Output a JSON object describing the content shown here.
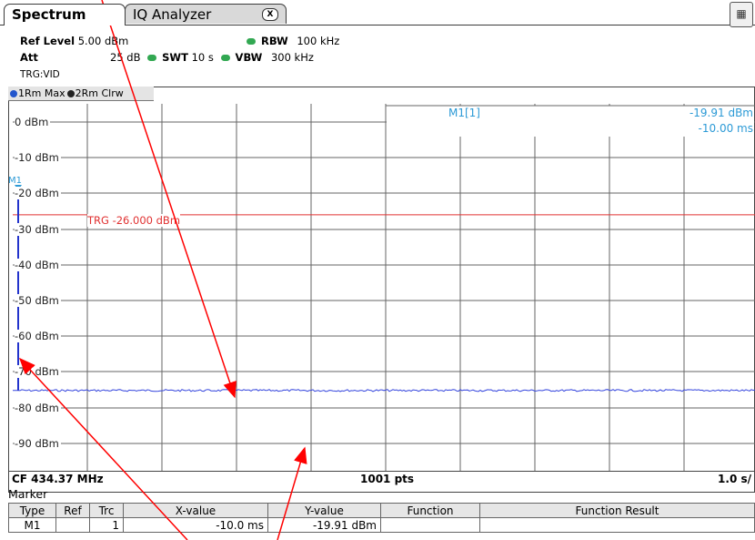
{
  "tabs": [
    {
      "label": "Spectrum",
      "active": true
    },
    {
      "label": "IQ Analyzer",
      "active": false,
      "close_glyph": "X"
    }
  ],
  "settings": {
    "ref_level_label": "Ref Level",
    "ref_level_value": "5.00 dBm",
    "att_label": "Att",
    "att_value": "25 dB",
    "swt_label": "SWT",
    "swt_value": "10 s",
    "rbw_label": "RBW",
    "rbw_value": "100 kHz",
    "vbw_label": "VBW",
    "vbw_value": "300 kHz",
    "trigger": "TRG:VID"
  },
  "trace_legend": {
    "trace1": "1Rm Max",
    "trace2": "2Rm Clrw",
    "trace1_color": "#2255cc",
    "trace2_color": "#222222"
  },
  "graph": {
    "y_labels": [
      "0 dBm",
      "-10 dBm",
      "-20 dBm",
      "-30 dBm",
      "-40 dBm",
      "-50 dBm",
      "-60 dBm",
      "-70 dBm",
      "-80 dBm",
      "-90 dBm"
    ],
    "ref_dbm": 0,
    "div_db": 10,
    "trigger_line_label": "TRG -26.000 dBm",
    "trigger_level_dbm": -26,
    "trace_color": "#3344dd",
    "noise_floor_dbm": -75.2,
    "marker_label": "M1",
    "marker_id": "M1[1]",
    "marker_y_readout": "-19.91 dBm",
    "marker_x_readout": "-10.00 ms",
    "marker_color": "#2c9ad6",
    "trigger_color": "#e03030"
  },
  "bottom_bar": {
    "cf": "CF 434.37 MHz",
    "points": "1001 pts",
    "span": "1.0 s/"
  },
  "marker_table": {
    "title": "Marker",
    "headers": [
      "Type",
      "Ref",
      "Trc",
      "X-value",
      "Y-value",
      "Function",
      "Function Result"
    ],
    "rows": [
      {
        "type": "M1",
        "ref": "",
        "trc": "1",
        "x": "-10.0 ms",
        "y": "-19.91 dBm",
        "function": "",
        "result": ""
      }
    ]
  },
  "annotation_color": "#ff0000"
}
